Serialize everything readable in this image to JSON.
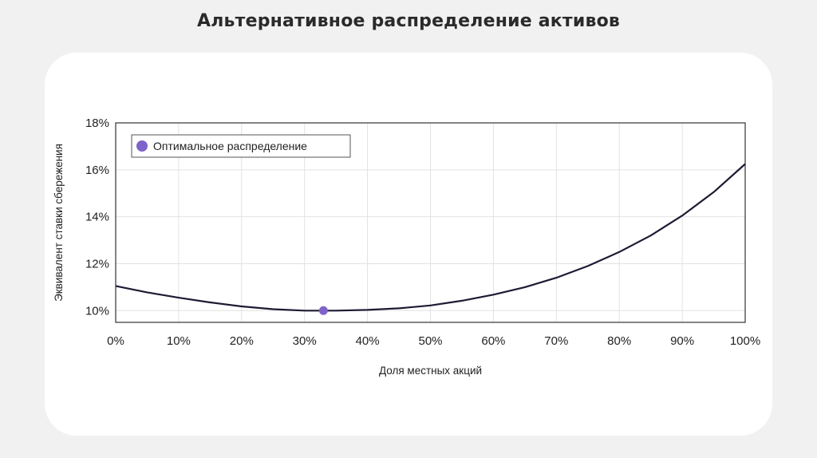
{
  "page": {
    "title": "Альтернативное распределение активов"
  },
  "chart_data": {
    "type": "line",
    "xlabel": "Доля местных акций",
    "ylabel": "Эквивалент ставки сбережения",
    "xlim": [
      0,
      100
    ],
    "ylim": [
      9.5,
      18
    ],
    "x_ticks": [
      0,
      10,
      20,
      30,
      40,
      50,
      60,
      70,
      80,
      90,
      100
    ],
    "x_tick_labels": [
      "0%",
      "10%",
      "20%",
      "30%",
      "40%",
      "50%",
      "60%",
      "70%",
      "80%",
      "90%",
      "100%"
    ],
    "y_ticks": [
      10,
      12,
      14,
      16,
      18
    ],
    "y_tick_labels": [
      "10%",
      "12%",
      "14%",
      "16%",
      "18%"
    ],
    "grid": true,
    "legend_position": "top-left",
    "series": [
      {
        "x": [
          0,
          5,
          10,
          15,
          20,
          25,
          30,
          33,
          35,
          40,
          45,
          50,
          55,
          60,
          65,
          70,
          75,
          80,
          85,
          90,
          95,
          100
        ],
        "y": [
          11.05,
          10.78,
          10.55,
          10.35,
          10.18,
          10.06,
          10.0,
          10.0,
          10.0,
          10.03,
          10.1,
          10.22,
          10.42,
          10.68,
          11.0,
          11.4,
          11.9,
          12.5,
          13.2,
          14.05,
          15.05,
          16.25
        ],
        "color": "#1f1a33"
      }
    ],
    "markers": [
      {
        "name": "Оптимальное распределение",
        "x": 33,
        "y": 10.0,
        "color": "#7f63c9"
      }
    ]
  }
}
